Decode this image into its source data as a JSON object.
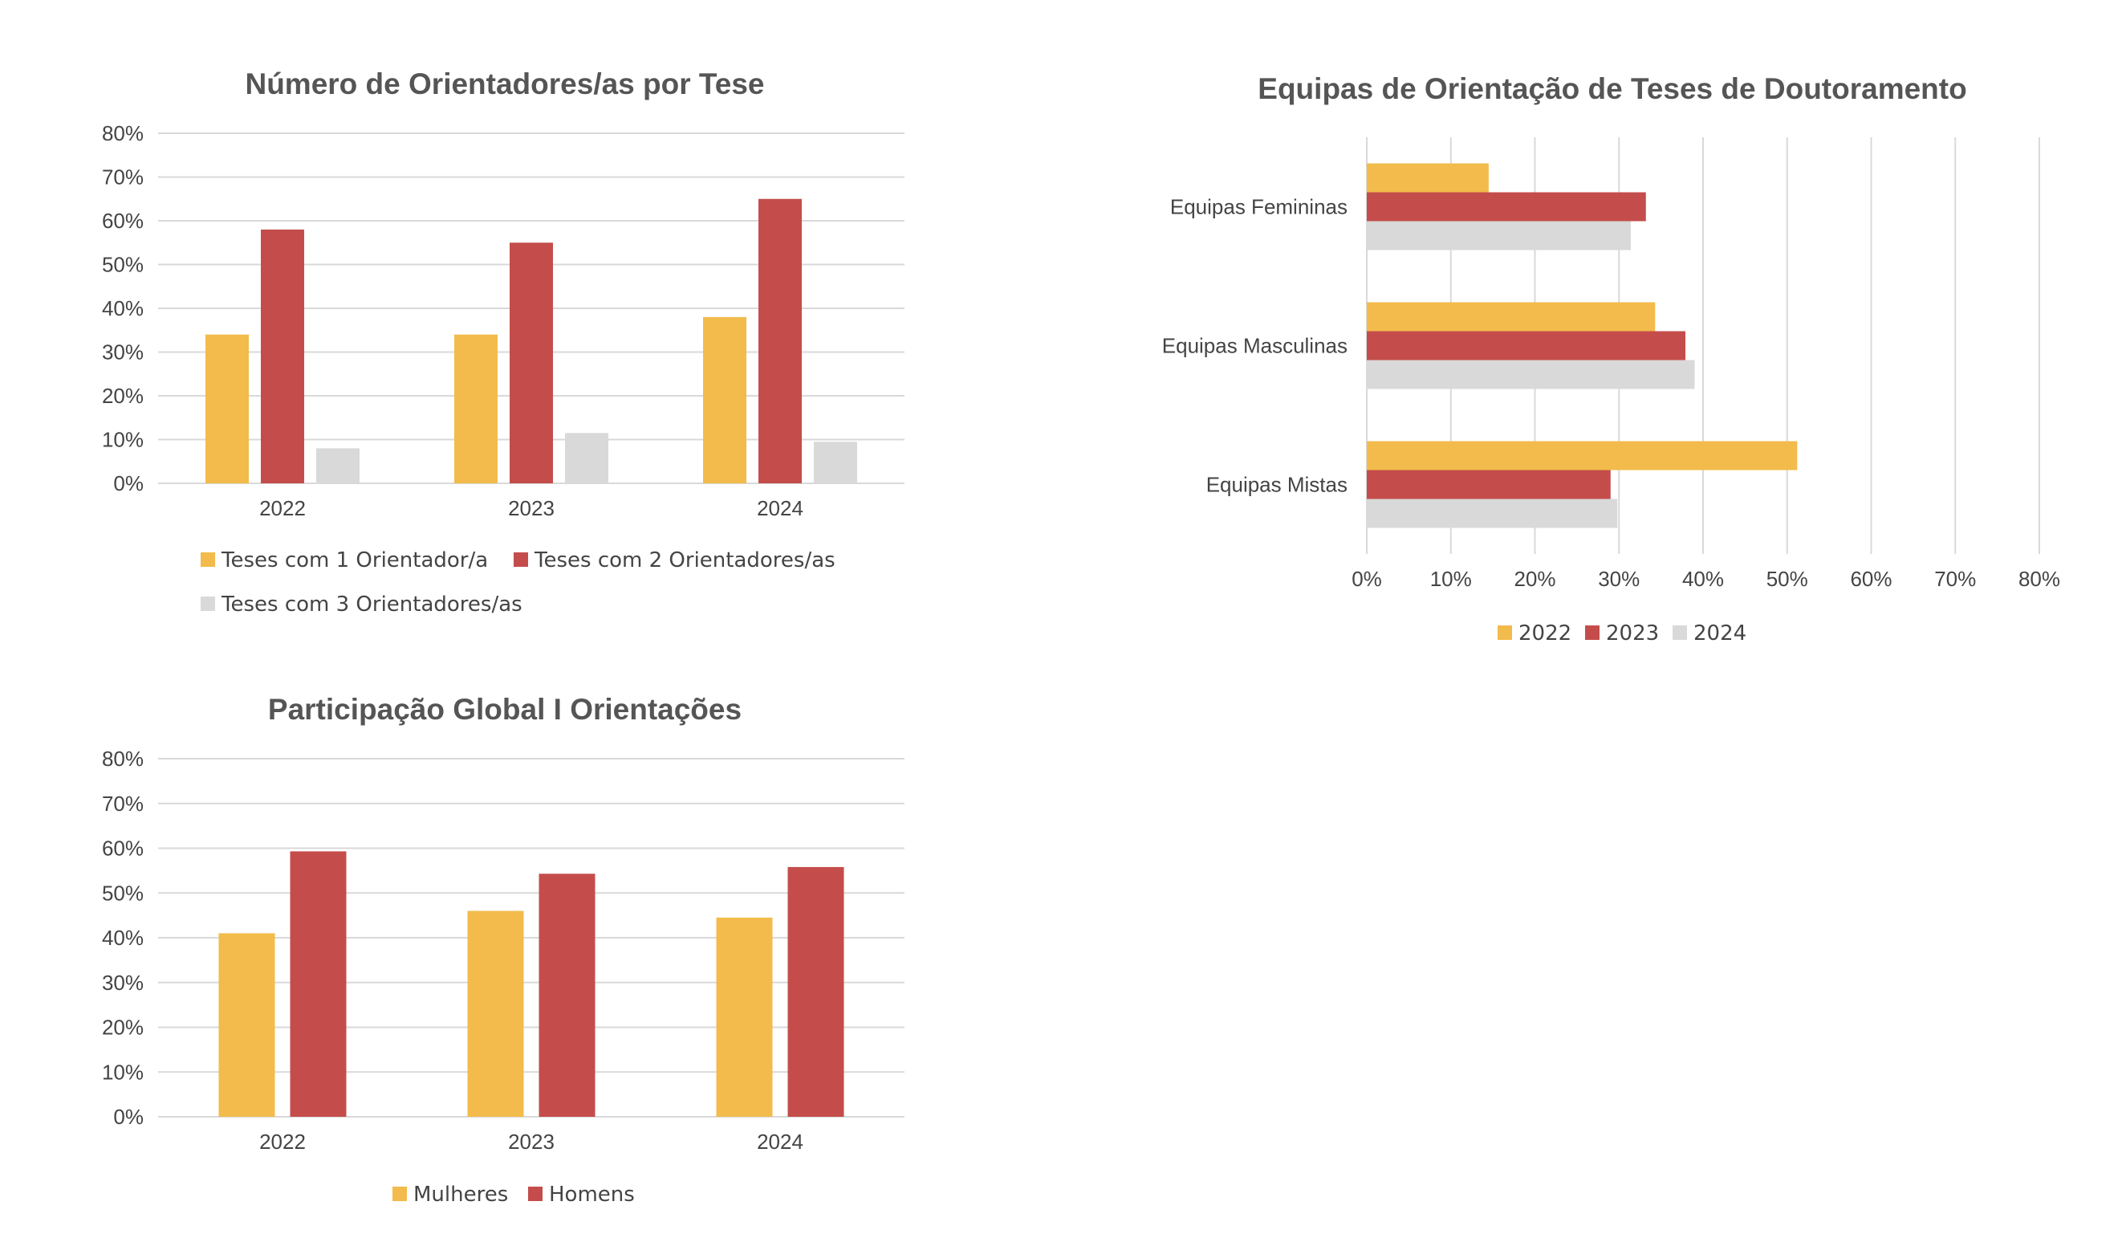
{
  "colors": {
    "yellow": "#F2BB4B",
    "red": "#C44D4B",
    "gray": "#D9D9D9"
  },
  "chart_data": [
    {
      "type": "bar",
      "title": "Número de Orientadores/as por Tese",
      "categories": [
        "2022",
        "2023",
        "2024"
      ],
      "ylim": [
        0,
        80
      ],
      "yticks": [
        "0%",
        "10%",
        "20%",
        "30%",
        "40%",
        "50%",
        "60%",
        "70%",
        "80%"
      ],
      "series": [
        {
          "name": "Teses com 1 Orientador/a",
          "values": [
            34,
            34,
            38
          ],
          "color": "yellow"
        },
        {
          "name": "Teses com 2 Orientadores/as",
          "values": [
            58,
            55,
            65
          ],
          "color": "red"
        },
        {
          "name": "Teses com 3 Orientadores/as",
          "values": [
            8,
            11.5,
            9.5
          ],
          "color": "gray"
        }
      ],
      "legend": "bottom"
    },
    {
      "type": "bar",
      "orientation": "horizontal",
      "title": "Equipas de Orientação de Teses de Doutoramento",
      "categories": [
        "Equipas Femininas",
        "Equipas Masculinas",
        "Equipas Mistas"
      ],
      "xlim": [
        0,
        80
      ],
      "xticks": [
        "0%",
        "10%",
        "20%",
        "30%",
        "40%",
        "50%",
        "60%",
        "70%",
        "80%"
      ],
      "series": [
        {
          "name": "2022",
          "values": [
            14.5,
            34.3,
            51.2
          ],
          "color": "yellow"
        },
        {
          "name": "2023",
          "values": [
            33.2,
            37.9,
            29
          ],
          "color": "red"
        },
        {
          "name": "2024",
          "values": [
            31.4,
            39,
            29.8
          ],
          "color": "gray"
        }
      ],
      "legend": "bottom"
    },
    {
      "type": "bar",
      "title": "Participação Global I Orientações",
      "categories": [
        "2022",
        "2023",
        "2024"
      ],
      "ylim": [
        0,
        80
      ],
      "yticks": [
        "0%",
        "10%",
        "20%",
        "30%",
        "40%",
        "50%",
        "60%",
        "70%",
        "80%"
      ],
      "series": [
        {
          "name": "Mulheres",
          "values": [
            41,
            46,
            44.5
          ],
          "color": "yellow"
        },
        {
          "name": "Homens",
          "values": [
            59.3,
            54.3,
            55.8
          ],
          "color": "red"
        }
      ],
      "legend": "bottom"
    }
  ]
}
